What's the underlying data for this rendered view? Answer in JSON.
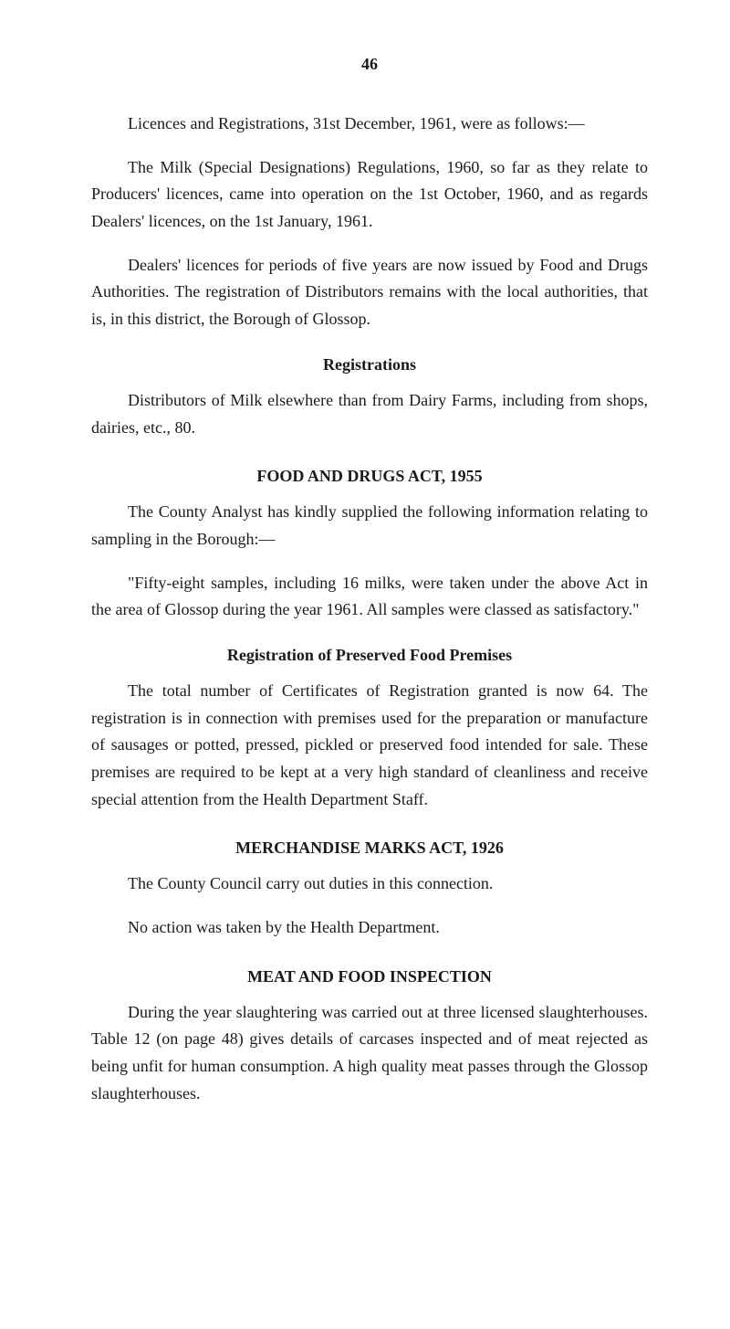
{
  "page_number": "46",
  "para1": "Licences and Registrations, 31st December, 1961, were as follows:—",
  "para2": "The Milk (Special Designations) Regulations, 1960, so far as they relate to Producers' licences, came into operation on the 1st October, 1960, and as regards Dealers' licences, on the 1st January, 1961.",
  "para3": "Dealers' licences for periods of five years are now issued by Food and Drugs Authorities. The registration of Distributors remains with the local authorities, that is, in this district, the Borough of Glossop.",
  "heading1": "Registrations",
  "para4": "Distributors of Milk elsewhere than from Dairy Farms, including from shops, dairies, etc., 80.",
  "heading2": "FOOD AND DRUGS ACT, 1955",
  "para5": "The County Analyst has kindly supplied the following information relating to sampling in the Borough:—",
  "para6": "\"Fifty-eight samples, including 16 milks, were taken under the above Act in the area of Glossop during the year 1961. All samples were classed as satisfactory.\"",
  "heading3": "Registration of Preserved Food Premises",
  "para7": "The total number of Certificates of Registration granted is now 64. The registration is in connection with premises used for the preparation or manufacture of sausages or potted, pressed, pickled or preserved food intended for sale. These premises are required to be kept at a very high standard of cleanliness and receive special attention from the Health Department Staff.",
  "heading4": "MERCHANDISE MARKS ACT, 1926",
  "para8": "The County Council carry out duties in this connection.",
  "para9": "No action was taken by the Health Department.",
  "heading5": "MEAT AND FOOD INSPECTION",
  "para10": "During the year slaughtering was carried out at three licensed slaughterhouses. Table 12 (on page 48) gives details of carcases inspected and of meat rejected as being unfit for human consumption. A high quality meat passes through the Glossop slaughterhouses."
}
